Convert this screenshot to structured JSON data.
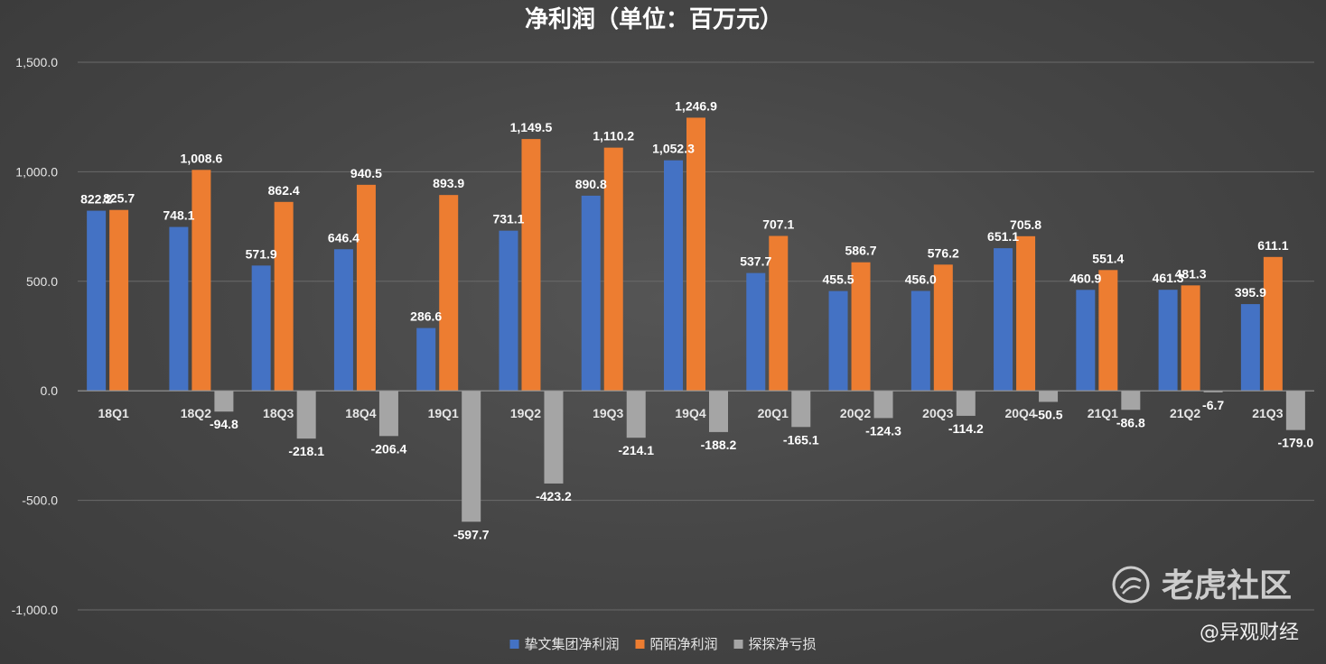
{
  "chart_data": {
    "type": "bar",
    "title": "净利润（单位：百万元）",
    "categories": [
      "18Q1",
      "18Q2",
      "18Q3",
      "18Q4",
      "19Q1",
      "19Q2",
      "19Q3",
      "19Q4",
      "20Q1",
      "20Q2",
      "20Q3",
      "20Q4",
      "21Q1",
      "21Q2",
      "21Q3"
    ],
    "series": [
      {
        "name": "挚文集团净利润",
        "color": "#4472C4",
        "values": [
          822.2,
          748.1,
          571.9,
          646.4,
          286.6,
          731.1,
          890.8,
          1052.3,
          537.7,
          455.5,
          456.0,
          651.1,
          460.9,
          461.3,
          395.9
        ],
        "labels": [
          "822.2",
          "748.1",
          "571.9",
          "646.4",
          "286.6",
          "731.1",
          "890.8",
          "1,052.3",
          "537.7",
          "455.5",
          "456.0",
          "651.1",
          "460.9",
          "461.3",
          "395.9"
        ]
      },
      {
        "name": "陌陌净利润",
        "color": "#ED7D31",
        "values": [
          825.7,
          1008.6,
          862.4,
          940.5,
          893.9,
          1149.5,
          1110.2,
          1246.9,
          707.1,
          586.7,
          576.2,
          705.8,
          551.4,
          481.3,
          611.1
        ],
        "labels": [
          "825.7",
          "1,008.6",
          "862.4",
          "940.5",
          "893.9",
          "1,149.5",
          "1,110.2",
          "1,246.9",
          "707.1",
          "586.7",
          "576.2",
          "705.8",
          "551.4",
          "481.3",
          "611.1"
        ]
      },
      {
        "name": "探探净亏损",
        "color": "#A5A5A5",
        "values": [
          null,
          -94.8,
          -218.1,
          -206.4,
          -597.7,
          -423.2,
          -214.1,
          -188.2,
          -165.1,
          -124.3,
          -114.2,
          -50.5,
          -86.8,
          -6.7,
          -179.0
        ],
        "labels": [
          null,
          "-94.8",
          "-218.1",
          "-206.4",
          "-597.7",
          "-423.2",
          "-214.1",
          "-188.2",
          "-165.1",
          "-124.3",
          "-114.2",
          "-50.5",
          "-86.8",
          "-6.7",
          "-179.0"
        ]
      }
    ],
    "ylim": [
      -1000,
      1500
    ],
    "yticks": [
      1500,
      1000,
      500,
      0,
      -500,
      -1000
    ],
    "ytick_labels": [
      "1,500.0",
      "1,000.0",
      "500.0",
      "0.0",
      "-500.0",
      "-1,000.0"
    ],
    "grid": true,
    "legend_position": "bottom"
  },
  "watermark": {
    "logo_text": "老虎社区",
    "source": "@异观财经"
  }
}
